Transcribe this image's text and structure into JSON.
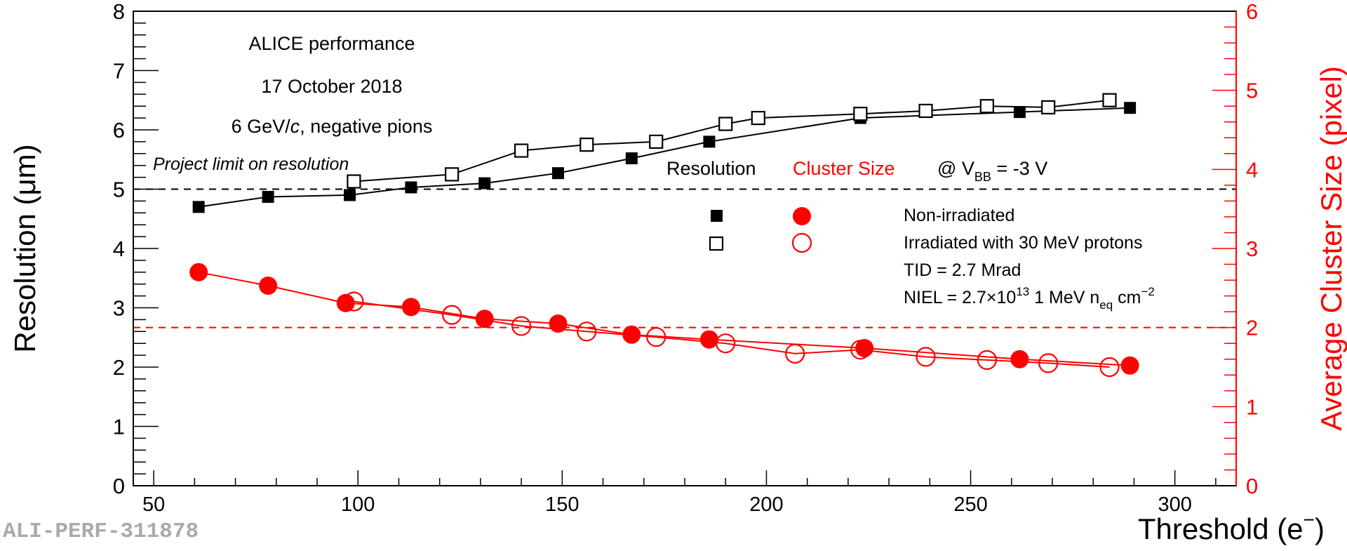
{
  "chart_data": {
    "type": "scatter",
    "xlabel": "Threshold (e",
    "xlabel_sup": "−",
    "xlabel_close": ")",
    "ylabel": "Resolution (μm)",
    "y2label": "Average Cluster Size (pixel)",
    "xlim": [
      45,
      315
    ],
    "ylim": [
      0,
      8
    ],
    "y2lim": [
      0,
      6
    ],
    "x_ticks": [
      "50",
      "100",
      "150",
      "200",
      "250",
      "300"
    ],
    "y_ticks": [
      "0",
      "1",
      "2",
      "3",
      "4",
      "5",
      "6",
      "7",
      "8"
    ],
    "y2_ticks": [
      "0",
      "1",
      "2",
      "3",
      "4",
      "5",
      "6"
    ],
    "colors": {
      "resolution": "#000000",
      "cluster_size": "#ff0000"
    },
    "header_lines": [
      "ALICE performance",
      "17 October 2018"
    ],
    "beam_line": {
      "pre": "6 GeV/",
      "italic": "c",
      "post": ", negative pions"
    },
    "limit_label": "Project limit on resolution",
    "resolution_limit": 5.0,
    "cluster_limit": 2.0,
    "legend_header": {
      "resolution": "Resolution",
      "cluster": "Cluster Size",
      "vbb_pre": "@ V",
      "vbb_sub": "BB",
      "vbb_post": " = -3 V"
    },
    "legend_entries": [
      "Non-irradiated",
      "Irradiated with 30 MeV protons"
    ],
    "legend_notes": {
      "tid": "TID = 2.7 Mrad",
      "niel_pre": "NIEL = 2.7×10",
      "niel_sup": "13",
      "niel_mid": "  1 MeV n",
      "niel_sub": "eq",
      "niel_post": " cm",
      "niel_sup2": "−2"
    },
    "watermark": "ALI-PERF-311878",
    "series": [
      {
        "name": "Non-irradiated",
        "quantity": "Resolution",
        "axis": "left",
        "marker": "filled-square",
        "color": "#000000",
        "x": [
          61,
          78,
          98,
          113,
          131,
          149,
          167,
          186,
          223,
          262,
          289
        ],
        "y": [
          4.7,
          4.87,
          4.9,
          5.03,
          5.1,
          5.27,
          5.52,
          5.8,
          6.2,
          6.3,
          6.37
        ]
      },
      {
        "name": "Irradiated with 30 MeV protons",
        "quantity": "Resolution",
        "axis": "left",
        "marker": "open-square",
        "color": "#000000",
        "x": [
          99,
          123,
          140,
          156,
          173,
          190,
          198,
          223,
          239,
          254,
          269,
          284
        ],
        "y": [
          5.13,
          5.25,
          5.65,
          5.75,
          5.8,
          6.1,
          6.2,
          6.27,
          6.32,
          6.4,
          6.38,
          6.5
        ]
      },
      {
        "name": "Non-irradiated",
        "quantity": "Cluster Size",
        "axis": "right",
        "marker": "filled-circle",
        "color": "#ff0000",
        "x": [
          61,
          78,
          97,
          113,
          131,
          149,
          167,
          186,
          224,
          262,
          289
        ],
        "y": [
          2.7,
          2.53,
          2.31,
          2.26,
          2.11,
          2.05,
          1.91,
          1.85,
          1.74,
          1.6,
          1.52
        ]
      },
      {
        "name": "Irradiated with 30 MeV protons",
        "quantity": "Cluster Size",
        "axis": "right",
        "marker": "open-circle",
        "color": "#ff0000",
        "x": [
          99,
          123,
          140,
          156,
          173,
          190,
          207,
          223,
          239,
          254,
          269,
          284
        ],
        "y": [
          2.33,
          2.16,
          2.02,
          1.95,
          1.88,
          1.8,
          1.67,
          1.72,
          1.63,
          1.59,
          1.55,
          1.5
        ]
      }
    ]
  }
}
